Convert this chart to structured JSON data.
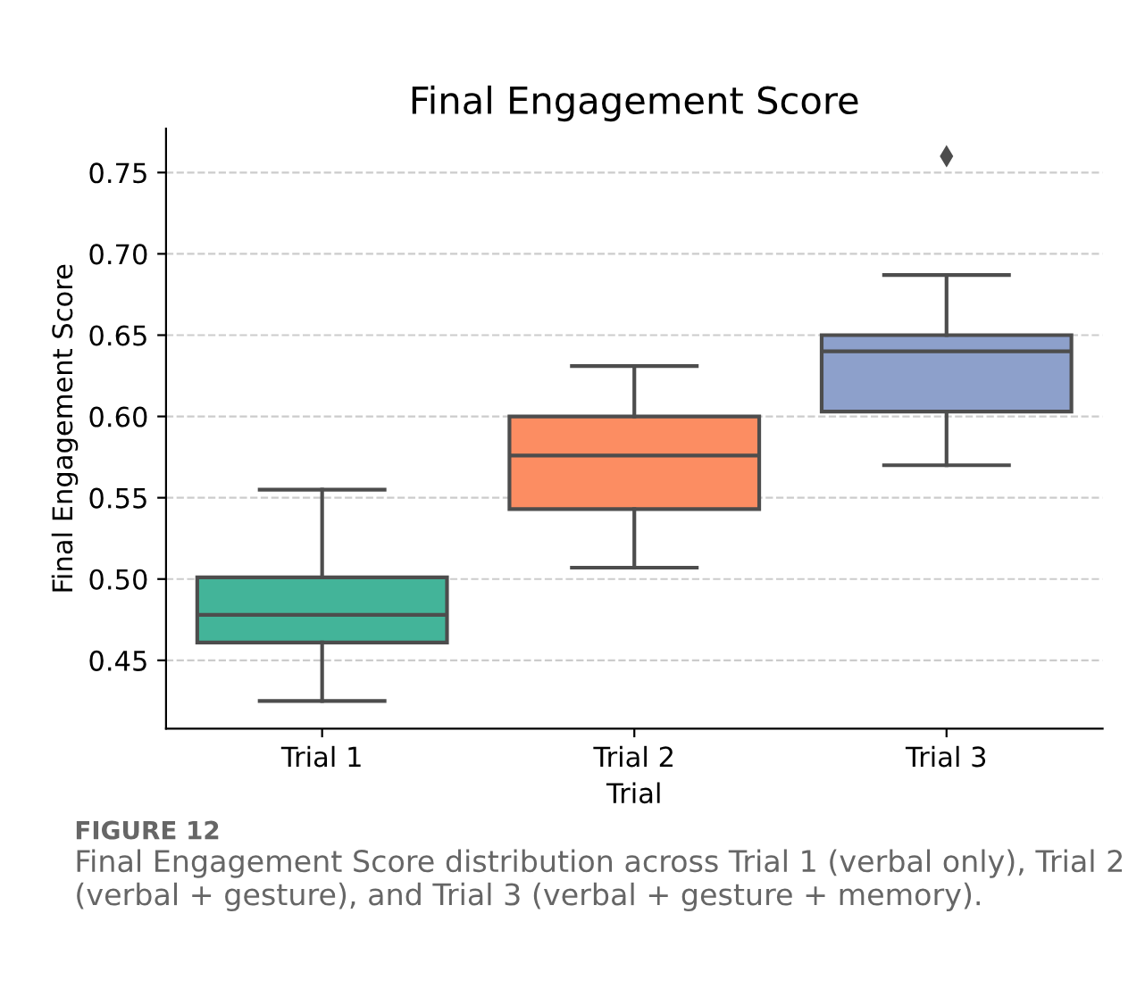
{
  "chart_data": {
    "type": "box",
    "title": "Final Engagement Score",
    "xlabel": "Trial",
    "ylabel": "Final Engagement Score",
    "categories": [
      "Trial 1",
      "Trial 2",
      "Trial 3"
    ],
    "colors": [
      "#43b499",
      "#fc8d62",
      "#8da0cb"
    ],
    "boxes": [
      {
        "low": 0.425,
        "q1": 0.461,
        "median": 0.478,
        "q3": 0.501,
        "high": 0.555
      },
      {
        "low": 0.507,
        "q1": 0.543,
        "median": 0.576,
        "q3": 0.6,
        "high": 0.631
      },
      {
        "low": 0.57,
        "q1": 0.603,
        "median": 0.64,
        "q3": 0.65,
        "high": 0.687,
        "outliers": [
          0.76
        ]
      }
    ],
    "ylim": [
      0.408,
      0.777
    ],
    "yticks": [
      0.45,
      {
        "value": 0.5,
        "label": "0.50"
      },
      0.55,
      {
        "value": 0.6,
        "label": "0.60"
      },
      0.65,
      {
        "value": 0.7,
        "label": "0.70"
      },
      0.75
    ],
    "grid": "y",
    "annotations": [
      "FIGURE 12",
      "Final Engagement Score distribution across Trial 1 (verbal only), Trial 2 (verbal + gesture), and Trial 3 (verbal + gesture + memory)."
    ]
  }
}
